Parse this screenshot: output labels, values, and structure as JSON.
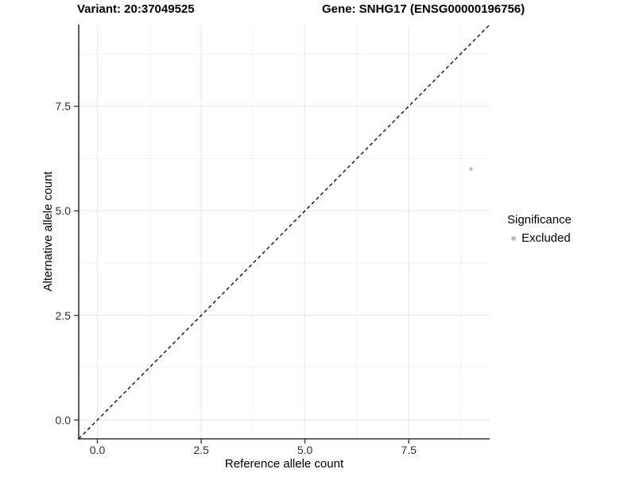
{
  "figure": {
    "title_left": "Variant: 20:37049525",
    "title_right": "Gene: SNHG17 (ENSG00000196756)"
  },
  "chart_data": {
    "type": "scatter",
    "title": "Variant: 20:37049525 | Gene: SNHG17 (ENSG00000196756)",
    "xlabel": "Reference allele count",
    "ylabel": "Alternative allele count",
    "xlim": [
      -0.45,
      9.45
    ],
    "ylim": [
      -0.45,
      9.45
    ],
    "x_ticks": {
      "values": [
        0,
        2.5,
        5,
        7.5
      ],
      "labels": [
        "0.0",
        "2.5",
        "5.0",
        "7.5"
      ]
    },
    "y_ticks": {
      "values": [
        0,
        2.5,
        5,
        7.5
      ],
      "labels": [
        "0.0",
        "2.5",
        "5.0",
        "7.5"
      ]
    },
    "minor_ticks": [
      1.25,
      3.75,
      6.25,
      8.75
    ],
    "grid": "major+minor",
    "series": [
      {
        "name": "Excluded",
        "points": [
          {
            "x": 9,
            "y": 6
          }
        ]
      }
    ],
    "reference_line": {
      "kind": "identity",
      "equation": "y = x",
      "style": "dashed",
      "color": "#000000"
    },
    "legend": {
      "title": "Significance",
      "position": "right",
      "items": [
        {
          "label": "Excluded",
          "color": "#bebebe"
        }
      ]
    },
    "colors": {
      "point": "#bebebe",
      "grid_major": "#e8e8e8",
      "grid_minor": "#f2f2f2",
      "axis_line": "#333333",
      "tick": "#333333",
      "tick_label": "#303030",
      "background": "#ffffff"
    }
  }
}
